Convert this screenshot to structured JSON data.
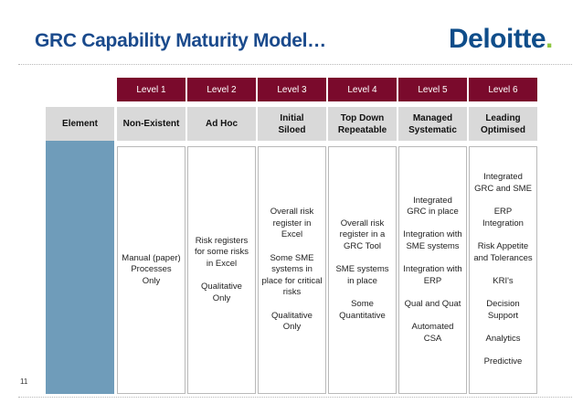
{
  "slide": {
    "title": "GRC Capability Maturity Model…",
    "logo_text": "Deloitte",
    "logo_dot": ".",
    "page_number": "11"
  },
  "table": {
    "row_header": "Element",
    "levels": [
      {
        "label": "Level 1",
        "name": "Non-Existent",
        "description": "Manual (paper)\nProcesses\nOnly"
      },
      {
        "label": "Level 2",
        "name": "Ad Hoc",
        "description": "Risk registers\nfor some risks\nin Excel\n\nQualitative\nOnly"
      },
      {
        "label": "Level 3",
        "name": "Initial\nSiloed",
        "description": "Overall risk\nregister in\nExcel\n\nSome SME\nsystems in\nplace for critical\nrisks\n\nQualitative\nOnly"
      },
      {
        "label": "Level 4",
        "name": "Top Down\nRepeatable",
        "description": "Overall risk\nregister in a\nGRC Tool\n\nSME systems\nin place\n\nSome\nQuantitative"
      },
      {
        "label": "Level 5",
        "name": "Managed\nSystematic",
        "description": "Integrated\nGRC in place\n\nIntegration with\nSME systems\n\nIntegration with\nERP\n\nQual and Quat\n\nAutomated\nCSA"
      },
      {
        "label": "Level 6",
        "name": "Leading\nOptimised",
        "description": "Integrated\nGRC and SME\n\nERP\nIntegration\n\nRisk Appetite\nand Tolerances\n\nKRI's\n\nDecision\nSupport\n\nAnalytics\n\nPredictive"
      }
    ]
  },
  "colors": {
    "title": "#1a4a8c",
    "level_header_bg": "#7a0a2c",
    "side_column": "#6f9cba",
    "name_box_bg": "#d9d9d9",
    "logo_dot": "#8dc63f"
  }
}
